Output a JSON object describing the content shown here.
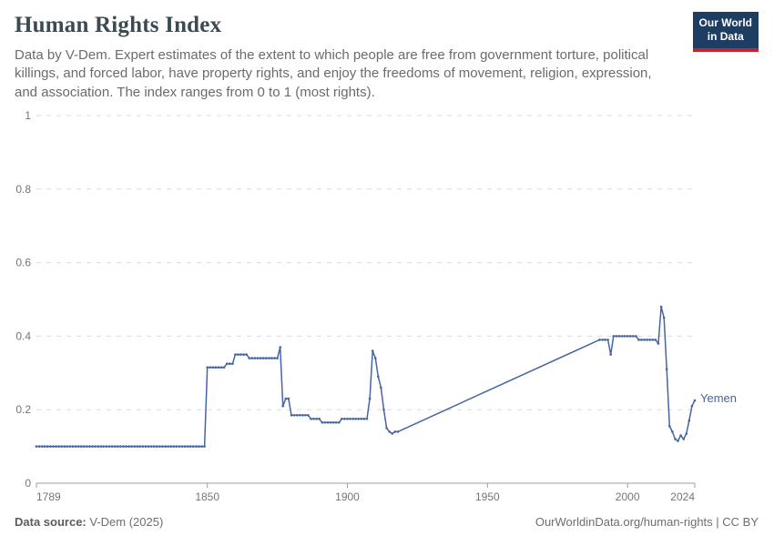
{
  "header": {
    "title": "Human Rights Index",
    "subtitle": "Data by V-Dem. Expert estimates of the extent to which people are free from government torture, political killings, and forced labor, have property rights, and enjoy the freedoms of movement, religion, expression, and association. The index ranges from 0 to 1 (most rights).",
    "logo": {
      "line1": "Our World",
      "line2": "in Data",
      "bg_color": "#1d3d63",
      "bar_color": "#c7232e"
    }
  },
  "chart_data": {
    "type": "line",
    "title": "Human Rights Index",
    "xlabel": "",
    "ylabel": "",
    "xlim": [
      1789,
      2024
    ],
    "ylim": [
      0,
      1
    ],
    "x_ticks": [
      1789,
      1850,
      1900,
      1950,
      2000,
      2024
    ],
    "y_ticks": [
      0,
      0.2,
      0.4,
      0.6,
      0.8,
      1
    ],
    "grid": "dashed-horizontal",
    "legend_position": "end-of-line-label",
    "data_gap": {
      "from": 1918,
      "to": 1990,
      "connected_by_straight_line": true
    },
    "series": [
      {
        "name": "Yemen",
        "color": "#4665A5",
        "marker": "dot-every-year",
        "runs_year_start_end_value": [
          [
            1789,
            1849,
            0.1
          ],
          [
            1850,
            1856,
            0.315
          ],
          [
            1857,
            1859,
            0.325
          ],
          [
            1860,
            1864,
            0.35
          ],
          [
            1865,
            1875,
            0.34
          ],
          [
            1876,
            1876,
            0.37
          ],
          [
            1877,
            1877,
            0.21
          ],
          [
            1878,
            1879,
            0.23
          ],
          [
            1880,
            1886,
            0.185
          ],
          [
            1887,
            1890,
            0.175
          ],
          [
            1891,
            1897,
            0.165
          ],
          [
            1898,
            1907,
            0.175
          ],
          [
            1908,
            1908,
            0.23
          ],
          [
            1909,
            1909,
            0.36
          ],
          [
            1910,
            1910,
            0.34
          ],
          [
            1911,
            1911,
            0.29
          ],
          [
            1912,
            1912,
            0.26
          ],
          [
            1913,
            1913,
            0.2
          ],
          [
            1914,
            1914,
            0.15
          ],
          [
            1915,
            1915,
            0.14
          ],
          [
            1916,
            1916,
            0.135
          ],
          [
            1917,
            1918,
            0.14
          ],
          [
            1990,
            1993,
            0.39
          ],
          [
            1994,
            1994,
            0.35
          ],
          [
            1995,
            2003,
            0.4
          ],
          [
            2004,
            2010,
            0.39
          ],
          [
            2011,
            2011,
            0.38
          ],
          [
            2012,
            2012,
            0.48
          ],
          [
            2013,
            2013,
            0.45
          ],
          [
            2014,
            2014,
            0.31
          ],
          [
            2015,
            2015,
            0.155
          ],
          [
            2016,
            2016,
            0.14
          ],
          [
            2017,
            2017,
            0.12
          ],
          [
            2018,
            2018,
            0.115
          ],
          [
            2019,
            2019,
            0.13
          ],
          [
            2020,
            2020,
            0.12
          ],
          [
            2021,
            2021,
            0.135
          ],
          [
            2022,
            2022,
            0.17
          ],
          [
            2023,
            2023,
            0.21
          ],
          [
            2024,
            2024,
            0.225
          ]
        ]
      }
    ]
  },
  "footer": {
    "source_label": "Data source:",
    "source_value": "V-Dem (2025)",
    "credit": "OurWorldinData.org/human-rights | CC BY"
  }
}
